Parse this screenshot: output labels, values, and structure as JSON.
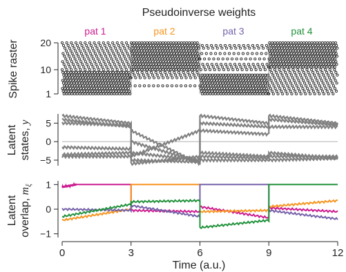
{
  "figure": {
    "title": "Pseudoinverse weights",
    "xlabel": "Time (a.u.)",
    "patterns": [
      {
        "label": "pat 1",
        "color": "#cc1a8f"
      },
      {
        "label": "pat 2",
        "color": "#f7941d"
      },
      {
        "label": "pat 3",
        "color": "#7461a8"
      },
      {
        "label": "pat 4",
        "color": "#20913a"
      }
    ]
  },
  "chart_data": [
    {
      "type": "scatter",
      "panel": "raster",
      "ylabel": "Spike raster",
      "xlim": [
        0,
        12
      ],
      "ylim": [
        1,
        20
      ],
      "yticks": [
        1,
        10,
        20
      ],
      "pattern_boundaries": [
        3,
        6,
        9
      ],
      "segments": [
        {
          "t": [
            0,
            3
          ],
          "active_neurons": [
            1,
            2,
            3,
            4,
            5,
            6,
            7,
            8,
            9,
            10,
            11,
            12,
            13,
            14,
            15,
            16,
            17,
            18,
            19,
            20
          ],
          "dense_neurons": [
            1,
            2,
            3,
            4,
            5,
            6,
            7,
            8,
            9
          ]
        },
        {
          "t": [
            3,
            6
          ],
          "active_neurons": [
            4,
            7,
            8,
            9,
            10,
            11,
            12,
            13,
            14,
            15,
            16,
            17,
            18,
            19,
            20
          ],
          "dense_neurons": [
            10,
            11,
            12,
            13,
            14,
            15,
            16,
            17,
            18,
            19,
            20
          ]
        },
        {
          "t": [
            6,
            9
          ],
          "active_neurons": [
            1,
            2,
            3,
            4,
            5,
            6,
            7,
            8,
            10,
            11,
            12,
            14,
            16,
            18,
            19
          ],
          "dense_neurons": [
            1,
            2,
            3,
            4,
            5,
            6,
            7,
            8
          ]
        },
        {
          "t": [
            9,
            12
          ],
          "active_neurons": [
            1,
            2,
            3,
            4,
            5,
            6,
            7,
            8,
            9,
            10,
            11,
            12,
            13,
            14,
            15,
            16,
            17,
            18,
            19,
            20
          ],
          "dense_neurons": [
            11,
            12,
            13,
            14,
            15,
            16,
            17,
            18,
            19,
            20
          ]
        }
      ],
      "dot_color": "#222222"
    },
    {
      "type": "line",
      "panel": "latent_states",
      "ylabel": "Latent states, y",
      "xlim": [
        0,
        12
      ],
      "ylim": [
        -6.5,
        7.5
      ],
      "yticks": [
        -5,
        0,
        5
      ],
      "zero_line": true,
      "series_color": "#808080",
      "series": [
        {
          "points": [
            [
              0,
              7
            ],
            [
              3,
              5
            ],
            [
              3,
              3
            ],
            [
              6,
              -6
            ],
            [
              6,
              7
            ],
            [
              9,
              5
            ],
            [
              9,
              7
            ],
            [
              12,
              5
            ]
          ]
        },
        {
          "points": [
            [
              0,
              6
            ],
            [
              3,
              4
            ],
            [
              3,
              -5
            ],
            [
              6,
              -5.5
            ],
            [
              6,
              5
            ],
            [
              9,
              4
            ],
            [
              9,
              6
            ],
            [
              12,
              4.5
            ]
          ]
        },
        {
          "points": [
            [
              0,
              5
            ],
            [
              3,
              4.5
            ],
            [
              3,
              -6
            ],
            [
              6,
              -4
            ],
            [
              6,
              3
            ],
            [
              9,
              2
            ],
            [
              9,
              4
            ],
            [
              12,
              4
            ]
          ]
        },
        {
          "points": [
            [
              0,
              -1.5
            ],
            [
              3,
              -2
            ],
            [
              3,
              -3
            ],
            [
              6,
              -5
            ],
            [
              6,
              -4
            ],
            [
              9,
              -4.5
            ],
            [
              9,
              -3
            ],
            [
              12,
              -4.5
            ]
          ]
        },
        {
          "points": [
            [
              0,
              -3.5
            ],
            [
              3,
              -3
            ],
            [
              3,
              -4
            ],
            [
              6,
              3
            ],
            [
              6,
              -3
            ],
            [
              9,
              -4
            ],
            [
              9,
              -4
            ],
            [
              12,
              -4
            ]
          ]
        },
        {
          "points": [
            [
              0,
              -4
            ],
            [
              3,
              -4
            ],
            [
              3,
              0
            ],
            [
              6,
              -5.5
            ],
            [
              6,
              -5
            ],
            [
              9,
              -5
            ],
            [
              9,
              -5
            ],
            [
              12,
              -4.5
            ]
          ]
        }
      ]
    },
    {
      "type": "line",
      "panel": "latent_overlap",
      "ylabel": "Latent overlap, m_ξ",
      "xlim": [
        0,
        12
      ],
      "ylim": [
        -1.15,
        1.15
      ],
      "yticks": [
        -1,
        0,
        1
      ],
      "xticks": [
        0,
        3,
        6,
        9,
        12
      ],
      "series": [
        {
          "name": "pat 1",
          "color": "#cc1a8f",
          "points": [
            [
              0,
              0.9
            ],
            [
              0.6,
              1.0
            ],
            [
              3,
              1.0
            ],
            [
              3,
              -0.05
            ],
            [
              6,
              -0.1
            ],
            [
              6,
              0.1
            ],
            [
              9,
              -0.35
            ],
            [
              9,
              0.05
            ],
            [
              12,
              -0.1
            ]
          ]
        },
        {
          "name": "pat 2",
          "color": "#f7941d",
          "points": [
            [
              0,
              -0.45
            ],
            [
              3,
              0.0
            ],
            [
              3,
              1.0
            ],
            [
              6,
              1.0
            ],
            [
              6,
              -0.1
            ],
            [
              9,
              -0.05
            ],
            [
              9,
              0.1
            ],
            [
              12,
              0.35
            ]
          ]
        },
        {
          "name": "pat 3",
          "color": "#7461a8",
          "points": [
            [
              0,
              0.0
            ],
            [
              3,
              -0.05
            ],
            [
              3,
              0.15
            ],
            [
              6,
              -0.3
            ],
            [
              6,
              1.0
            ],
            [
              9,
              1.0
            ],
            [
              9,
              -0.05
            ],
            [
              12,
              -0.4
            ]
          ]
        },
        {
          "name": "pat 4",
          "color": "#20913a",
          "points": [
            [
              0,
              -0.3
            ],
            [
              3,
              0.2
            ],
            [
              3,
              0.3
            ],
            [
              6,
              0.35
            ],
            [
              6,
              -0.75
            ],
            [
              9,
              -0.45
            ],
            [
              9,
              1.0
            ],
            [
              12,
              1.0
            ]
          ]
        }
      ],
      "wobble_amplitude": 0.04
    }
  ]
}
